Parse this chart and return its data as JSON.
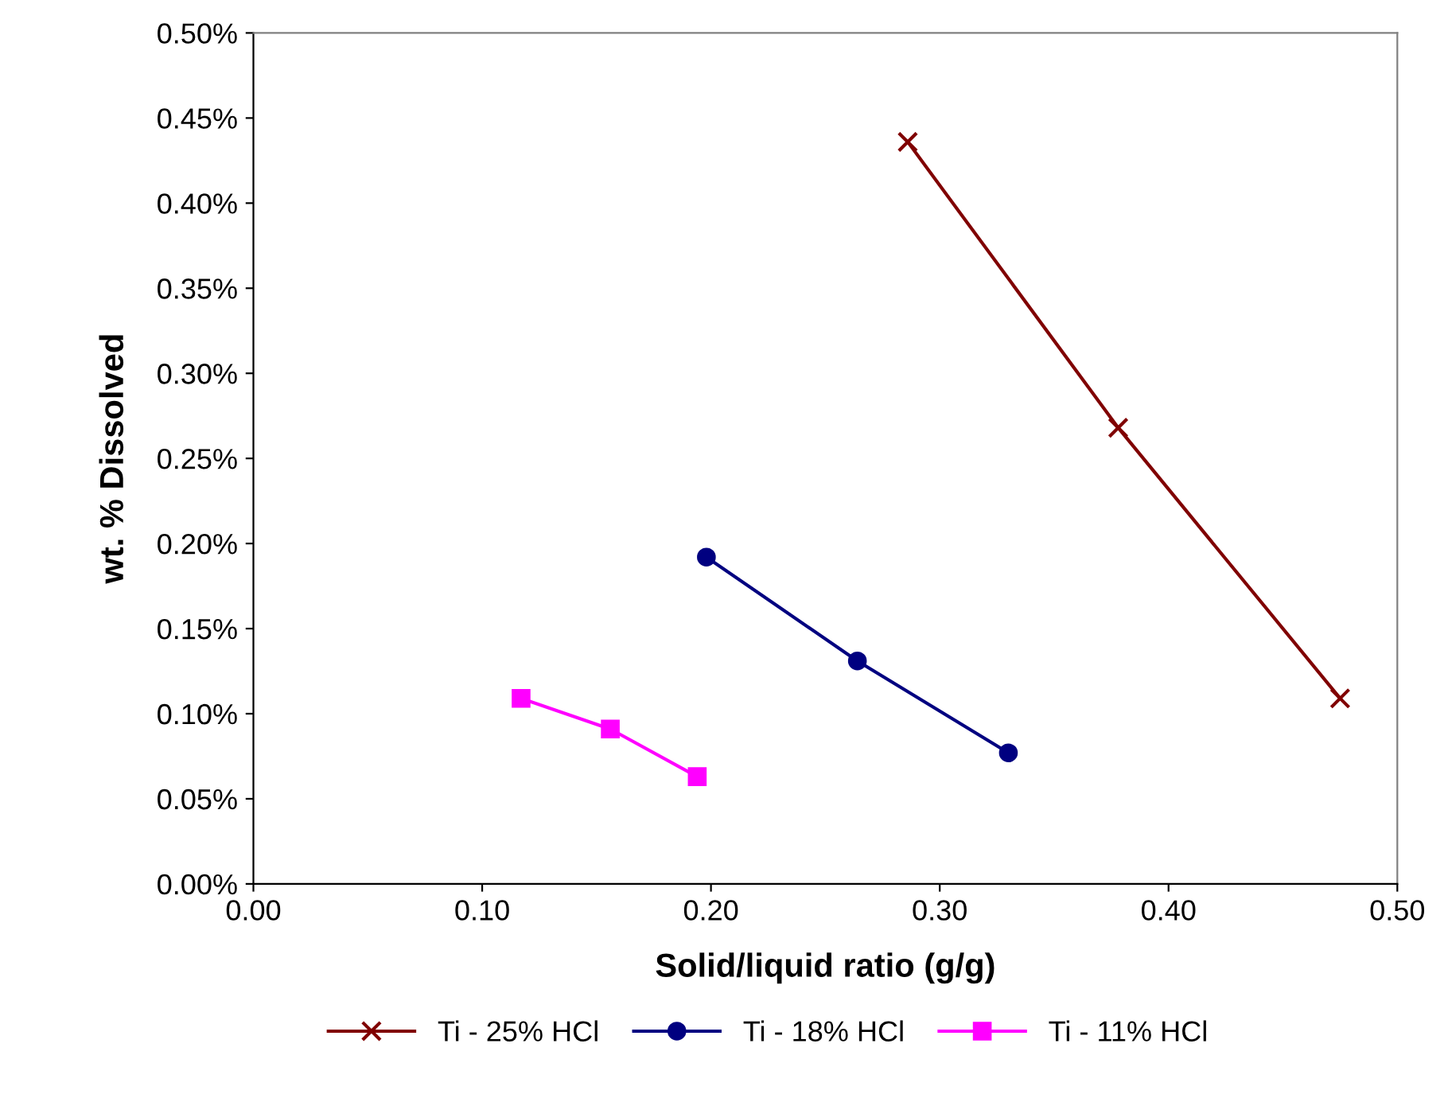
{
  "chart_data": {
    "type": "line",
    "xlabel": "Solid/liquid ratio (g/g)",
    "ylabel": "wt. % Dissolved",
    "series": [
      {
        "name": "Ti - 25% HCl",
        "color": "#800000",
        "marker": "cross",
        "x": [
          0.286,
          0.378,
          0.475
        ],
        "values": [
          0.436,
          0.268,
          0.109
        ]
      },
      {
        "name": "Ti - 18% HCl",
        "color": "#000080",
        "marker": "circle",
        "x": [
          0.198,
          0.264,
          0.33
        ],
        "values": [
          0.192,
          0.131,
          0.077
        ]
      },
      {
        "name": "Ti - 11% HCl",
        "color": "#ff00ff",
        "marker": "square",
        "x": [
          0.117,
          0.156,
          0.194
        ],
        "values": [
          0.109,
          0.091,
          0.063
        ]
      }
    ],
    "xlim": [
      0,
      0.5
    ],
    "xticks": [
      {
        "value": 0,
        "label": "0.00"
      },
      {
        "value": 0.1,
        "label": "0.10"
      },
      {
        "value": 0.2,
        "label": "0.20"
      },
      {
        "value": 0.3,
        "label": "0.30"
      },
      {
        "value": 0.4,
        "label": "0.40"
      },
      {
        "value": 0.5,
        "label": "0.50"
      }
    ],
    "ylim": [
      0,
      0.5
    ],
    "yticks": [
      {
        "value": 0,
        "label": "0.00%"
      },
      {
        "value": 0.05,
        "label": "0.05%"
      },
      {
        "value": 0.1,
        "label": "0.10%"
      },
      {
        "value": 0.15,
        "label": "0.15%"
      },
      {
        "value": 0.2,
        "label": "0.20%"
      },
      {
        "value": 0.25,
        "label": "0.25%"
      },
      {
        "value": 0.3,
        "label": "0.30%"
      },
      {
        "value": 0.35,
        "label": "0.35%"
      },
      {
        "value": 0.4,
        "label": "0.40%"
      },
      {
        "value": 0.45,
        "label": "0.45%"
      },
      {
        "value": 0.5,
        "label": "0.50%"
      }
    ],
    "grid": false,
    "legend": "bottom",
    "line_style": "solid"
  }
}
